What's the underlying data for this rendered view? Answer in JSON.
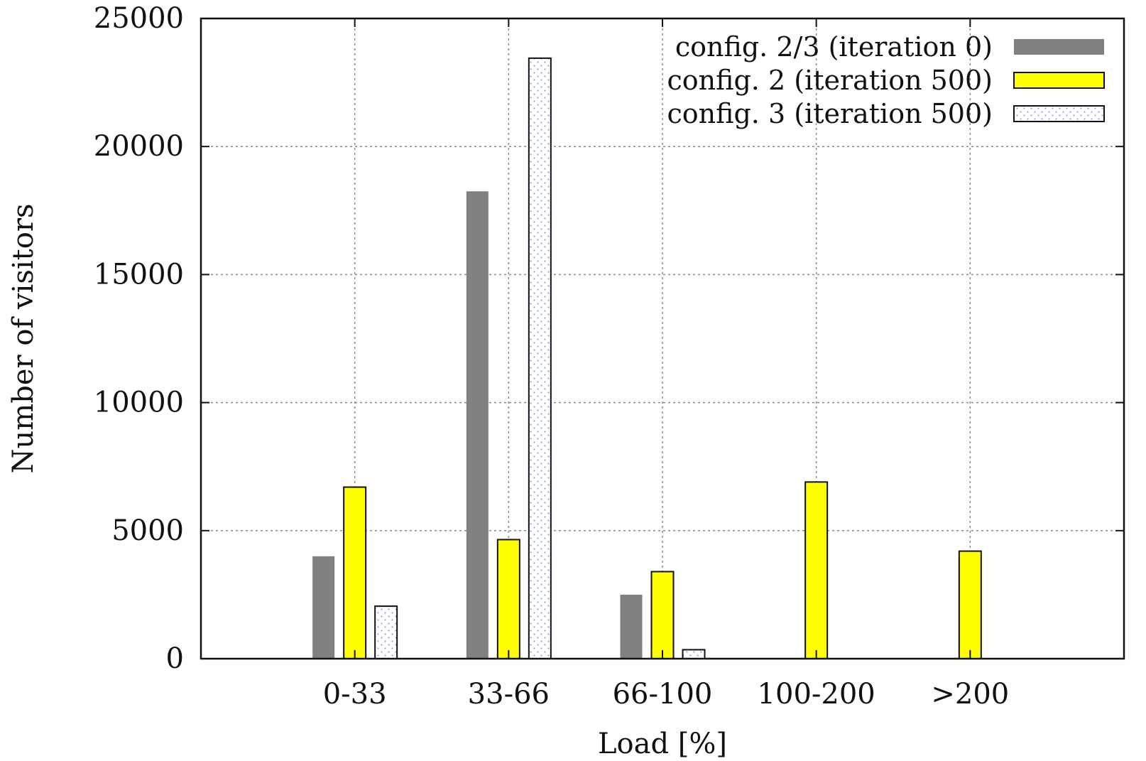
{
  "chart_data": {
    "type": "bar",
    "title": "",
    "xlabel": "Load [%]",
    "ylabel": "Number of visitors",
    "categories": [
      "0-33",
      "33-66",
      "66-100",
      "100-200",
      ">200"
    ],
    "ylim": [
      0,
      25000
    ],
    "yticks": [
      0,
      5000,
      10000,
      15000,
      20000,
      25000
    ],
    "grid": true,
    "legend_position": "top-right",
    "series": [
      {
        "name": "config. 2/3 (iteration 0)",
        "values": [
          4000,
          18250,
          2500,
          0,
          0
        ],
        "color": "#808080",
        "pattern": "solid"
      },
      {
        "name": "config. 2 (iteration 500)",
        "values": [
          6700,
          4650,
          3400,
          6900,
          4200
        ],
        "color": "#ffff00",
        "pattern": "solid-outlined"
      },
      {
        "name": "config. 3 (iteration 500)",
        "values": [
          2050,
          23450,
          350,
          0,
          0
        ],
        "color": "#ffffff",
        "pattern": "dotted-blue"
      }
    ]
  }
}
